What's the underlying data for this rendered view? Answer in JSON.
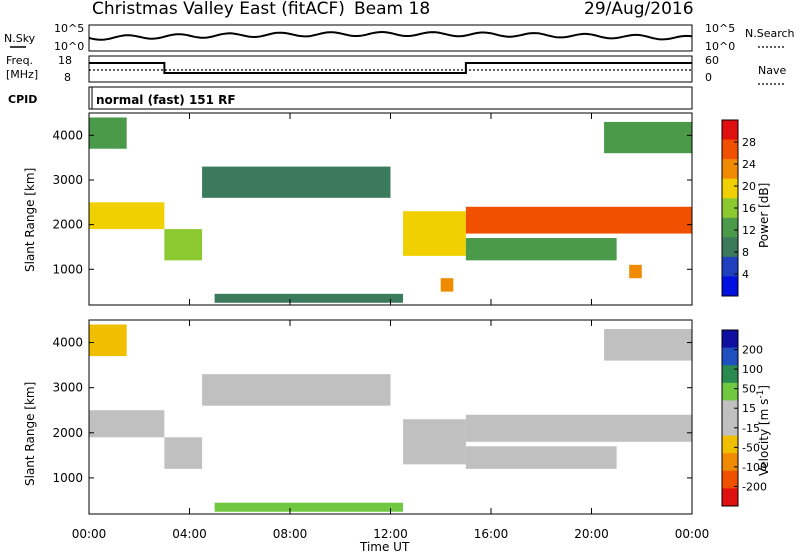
{
  "header": {
    "station": "Christmas Valley East (fitACF)",
    "beam": "Beam 18",
    "date": "29/Aug/2016"
  },
  "top_panels": {
    "nsky_label": "N.Sky",
    "nsky_ticks": [
      "10^5",
      "10^0"
    ],
    "nsearch_label": "N.Search",
    "freq_label_1": "Freq.",
    "freq_label_2": "[MHz]",
    "freq_ticks": [
      "18",
      "8"
    ],
    "nave_label": "Nave",
    "nave_ticks": [
      "60",
      "0"
    ],
    "cpid_label": "CPID",
    "cpid_value": "normal (fast) 151 RF"
  },
  "colors": {
    "power": [
      "#0010e0",
      "#2040c0",
      "#3c7a5c",
      "#4a9a4a",
      "#8cc830",
      "#f0d000",
      "#f08a00",
      "#f05000",
      "#e01010"
    ],
    "velocity": [
      "#e01010",
      "#f05000",
      "#f08a00",
      "#f0c000",
      "#c0c0c0",
      "#c0c0c0",
      "#70c840",
      "#2a8a50",
      "#2050c0",
      "#1010a0"
    ]
  },
  "chart_data": [
    {
      "type": "heatmap",
      "name": "power",
      "ylabel": "Slant Range [km]",
      "yticks": [
        "4000",
        "3000",
        "2000",
        "1000"
      ],
      "ylim": [
        200,
        4500
      ],
      "colorbar_label": "Power [dB]",
      "colorbar_ticks": [
        "28",
        "24",
        "20",
        "16",
        "12",
        "8",
        "4"
      ],
      "clim": [
        0,
        32
      ],
      "regions": [
        {
          "t": [
            0.0,
            3.0
          ],
          "r": [
            1900,
            2500
          ],
          "v": 20
        },
        {
          "t": [
            0.0,
            1.5
          ],
          "r": [
            3700,
            4400
          ],
          "v": 14
        },
        {
          "t": [
            3.0,
            4.5
          ],
          "r": [
            1200,
            1900
          ],
          "v": 16
        },
        {
          "t": [
            4.5,
            12.0
          ],
          "r": [
            2600,
            3300
          ],
          "v": 8
        },
        {
          "t": [
            5.0,
            12.5
          ],
          "r": [
            250,
            450
          ],
          "v": 10
        },
        {
          "t": [
            12.5,
            15.0
          ],
          "r": [
            1300,
            2300
          ],
          "v": 20
        },
        {
          "t": [
            14.0,
            14.5
          ],
          "r": [
            500,
            800
          ],
          "v": 24
        },
        {
          "t": [
            15.0,
            24.0
          ],
          "r": [
            1800,
            2400
          ],
          "v": 26
        },
        {
          "t": [
            15.0,
            21.0
          ],
          "r": [
            1200,
            1700
          ],
          "v": 12
        },
        {
          "t": [
            21.5,
            22.0
          ],
          "r": [
            800,
            1100
          ],
          "v": 22
        },
        {
          "t": [
            20.5,
            24.0
          ],
          "r": [
            3600,
            4300
          ],
          "v": 12
        }
      ]
    },
    {
      "type": "heatmap",
      "name": "velocity",
      "ylabel": "Slant Range [km]",
      "yticks": [
        "4000",
        "3000",
        "2000",
        "1000"
      ],
      "ylim": [
        200,
        4500
      ],
      "colorbar_label": "Velocity [m s",
      "colorbar_label_sup": "-1",
      "colorbar_label_end": "]",
      "colorbar_ticks": [
        "200",
        "100",
        "50",
        "15",
        "-15",
        "-50",
        "-100",
        "-200"
      ],
      "clim": [
        -250,
        250
      ],
      "xlabel": "Time UT",
      "xticks": [
        "00:00",
        "04:00",
        "08:00",
        "12:00",
        "16:00",
        "20:00",
        "00:00"
      ],
      "xlim": [
        0,
        24
      ],
      "regions": [
        {
          "t": [
            0.0,
            3.0
          ],
          "r": [
            1900,
            2500
          ],
          "v": 0
        },
        {
          "t": [
            0.0,
            1.5
          ],
          "r": [
            3700,
            4400
          ],
          "v": -60
        },
        {
          "t": [
            3.0,
            4.5
          ],
          "r": [
            1200,
            1900
          ],
          "v": 0
        },
        {
          "t": [
            4.5,
            12.0
          ],
          "r": [
            2600,
            3300
          ],
          "v": -30
        },
        {
          "t": [
            5.0,
            12.5
          ],
          "r": [
            250,
            450
          ],
          "v": 60
        },
        {
          "t": [
            12.5,
            15.0
          ],
          "r": [
            1300,
            2300
          ],
          "v": 0
        },
        {
          "t": [
            15.0,
            24.0
          ],
          "r": [
            1800,
            2400
          ],
          "v": 0
        },
        {
          "t": [
            15.0,
            21.0
          ],
          "r": [
            1200,
            1700
          ],
          "v": 0
        },
        {
          "t": [
            20.5,
            24.0
          ],
          "r": [
            3600,
            4300
          ],
          "v": -40
        }
      ]
    }
  ]
}
